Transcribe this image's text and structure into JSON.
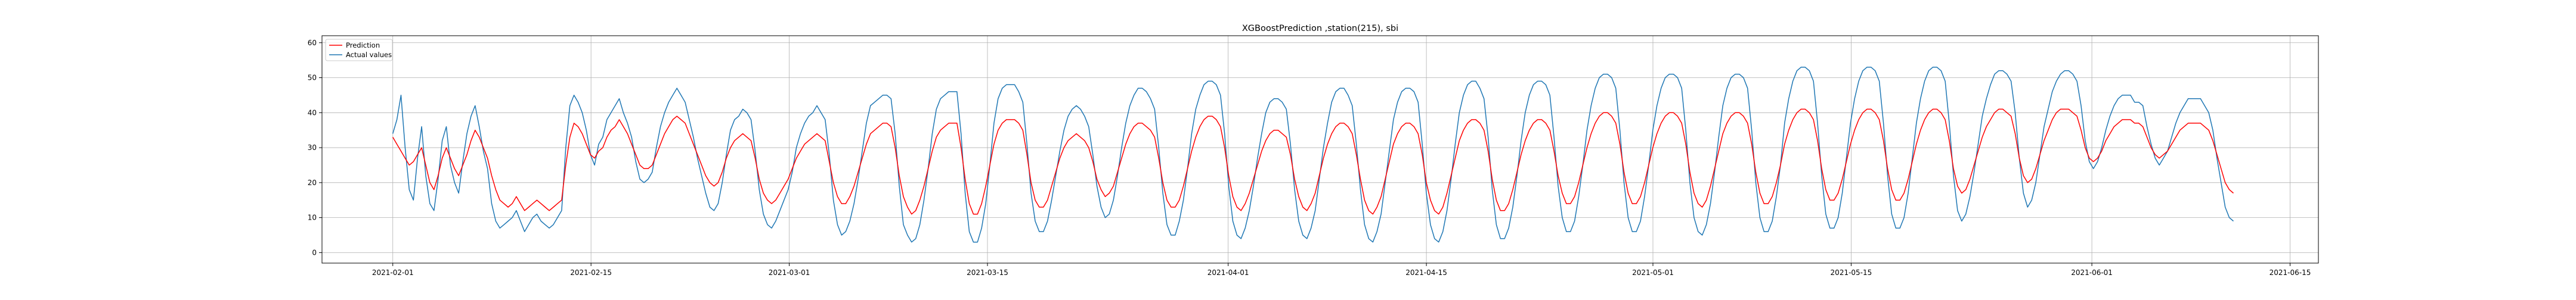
{
  "chart_data": {
    "type": "line",
    "title": "XGBoostPrediction ,station(215), sbi",
    "xlabel": "",
    "ylabel": "",
    "x_range": [
      "2021-01-27",
      "2021-06-17"
    ],
    "x_ticks": [
      "2021-02-01",
      "2021-02-15",
      "2021-03-01",
      "2021-03-15",
      "2021-04-01",
      "2021-04-15",
      "2021-05-01",
      "2021-05-15",
      "2021-06-01",
      "2021-06-15"
    ],
    "ylim": [
      -3,
      62
    ],
    "y_ticks": [
      0,
      10,
      20,
      30,
      40,
      50,
      60
    ],
    "grid": true,
    "legend_position": "top-left",
    "data_start": "2021-02-01",
    "data_end": "2021-06-11",
    "hourly_values": "sampled every 4 hours",
    "series": [
      {
        "name": "Prediction",
        "color": "#ff0000",
        "values": [
          33,
          31,
          29,
          27,
          25,
          26,
          28,
          30,
          25,
          20,
          18,
          22,
          27,
          30,
          27,
          24,
          22,
          25,
          28,
          32,
          35,
          33,
          30,
          27,
          22,
          18,
          15,
          14,
          13,
          14,
          16,
          14,
          12,
          13,
          14,
          15,
          14,
          13,
          12,
          13,
          14,
          15,
          25,
          33,
          37,
          36,
          34,
          31,
          28,
          27,
          29,
          30,
          33,
          35,
          36,
          38,
          36,
          34,
          31,
          28,
          25,
          24,
          24,
          25,
          28,
          31,
          34,
          36,
          38,
          39,
          38,
          37,
          34,
          31,
          28,
          25,
          22,
          20,
          19,
          20,
          23,
          27,
          30,
          32,
          33,
          34,
          33,
          32,
          27,
          21,
          17,
          15,
          14,
          15,
          17,
          19,
          21,
          24,
          27,
          29,
          31,
          32,
          33,
          34,
          33,
          32,
          26,
          20,
          16,
          14,
          14,
          16,
          19,
          23,
          27,
          31,
          34,
          35,
          36,
          37,
          37,
          36,
          30,
          22,
          16,
          13,
          11,
          12,
          15,
          19,
          24,
          29,
          33,
          35,
          36,
          37,
          37,
          37,
          30,
          21,
          14,
          11,
          11,
          14,
          19,
          25,
          31,
          35,
          37,
          38,
          38,
          38,
          37,
          35,
          28,
          20,
          15,
          13,
          13,
          15,
          19,
          23,
          27,
          30,
          32,
          33,
          34,
          33,
          32,
          30,
          26,
          21,
          18,
          16,
          17,
          19,
          23,
          27,
          31,
          34,
          36,
          37,
          37,
          36,
          35,
          33,
          27,
          20,
          15,
          13,
          13,
          15,
          19,
          24,
          29,
          33,
          36,
          38,
          39,
          39,
          38,
          36,
          30,
          22,
          16,
          13,
          12,
          14,
          17,
          21,
          25,
          29,
          32,
          34,
          35,
          35,
          34,
          33,
          28,
          21,
          16,
          13,
          12,
          14,
          17,
          22,
          27,
          31,
          34,
          36,
          37,
          37,
          36,
          34,
          28,
          21,
          15,
          12,
          11,
          13,
          16,
          21,
          26,
          31,
          34,
          36,
          37,
          37,
          36,
          34,
          28,
          20,
          15,
          12,
          11,
          13,
          17,
          22,
          27,
          32,
          35,
          37,
          38,
          38,
          37,
          35,
          29,
          21,
          15,
          12,
          12,
          14,
          18,
          23,
          28,
          32,
          35,
          37,
          38,
          38,
          37,
          35,
          29,
          22,
          17,
          14,
          14,
          16,
          20,
          25,
          30,
          34,
          37,
          39,
          40,
          40,
          39,
          37,
          31,
          23,
          17,
          14,
          14,
          16,
          20,
          25,
          30,
          34,
          37,
          39,
          40,
          40,
          39,
          37,
          31,
          23,
          17,
          14,
          13,
          15,
          19,
          24,
          29,
          34,
          37,
          39,
          40,
          40,
          39,
          37,
          31,
          23,
          17,
          14,
          14,
          16,
          20,
          25,
          31,
          35,
          38,
          40,
          41,
          41,
          40,
          38,
          32,
          24,
          18,
          15,
          15,
          17,
          21,
          26,
          31,
          35,
          38,
          40,
          41,
          41,
          40,
          38,
          32,
          24,
          18,
          15,
          15,
          17,
          21,
          26,
          31,
          35,
          38,
          40,
          41,
          41,
          40,
          38,
          32,
          24,
          19,
          17,
          18,
          21,
          25,
          29,
          33,
          36,
          38,
          40,
          41,
          41,
          40,
          39,
          34,
          27,
          22,
          20,
          21,
          24,
          28,
          32,
          35,
          38,
          40,
          41,
          41,
          41,
          40,
          39,
          35,
          30,
          27,
          26,
          27,
          29,
          32,
          34,
          36,
          37,
          38,
          38,
          38,
          37,
          37,
          36,
          33,
          30,
          28,
          27,
          28,
          29,
          31,
          33,
          35,
          36,
          37,
          37,
          37,
          37,
          36,
          35,
          32,
          28,
          24,
          20,
          18,
          17
        ]
      },
      {
        "name": "Actual values",
        "color": "#1f77b4",
        "values": [
          34,
          38,
          45,
          30,
          18,
          15,
          27,
          36,
          22,
          14,
          12,
          21,
          32,
          36,
          25,
          20,
          17,
          26,
          34,
          39,
          42,
          36,
          29,
          24,
          14,
          9,
          7,
          8,
          9,
          10,
          12,
          9,
          6,
          8,
          10,
          11,
          9,
          8,
          7,
          8,
          10,
          12,
          30,
          42,
          45,
          43,
          40,
          35,
          28,
          25,
          31,
          33,
          38,
          40,
          42,
          44,
          40,
          37,
          33,
          26,
          21,
          20,
          21,
          23,
          30,
          36,
          40,
          43,
          45,
          47,
          45,
          43,
          38,
          33,
          27,
          22,
          17,
          13,
          12,
          14,
          20,
          28,
          35,
          38,
          39,
          41,
          40,
          38,
          29,
          18,
          11,
          8,
          7,
          9,
          12,
          15,
          18,
          23,
          30,
          34,
          37,
          39,
          40,
          42,
          40,
          38,
          28,
          15,
          8,
          5,
          6,
          9,
          14,
          21,
          29,
          37,
          42,
          43,
          44,
          45,
          45,
          44,
          34,
          19,
          8,
          5,
          3,
          4,
          8,
          15,
          24,
          34,
          41,
          44,
          45,
          46,
          46,
          46,
          34,
          17,
          6,
          3,
          3,
          7,
          14,
          25,
          37,
          44,
          47,
          48,
          48,
          48,
          46,
          43,
          31,
          17,
          9,
          6,
          6,
          9,
          15,
          22,
          29,
          35,
          39,
          41,
          42,
          41,
          39,
          36,
          28,
          19,
          13,
          10,
          11,
          15,
          22,
          30,
          37,
          42,
          45,
          47,
          47,
          46,
          44,
          41,
          30,
          17,
          8,
          5,
          5,
          9,
          15,
          24,
          34,
          41,
          45,
          48,
          49,
          49,
          48,
          45,
          34,
          19,
          9,
          5,
          4,
          7,
          12,
          19,
          27,
          34,
          40,
          43,
          44,
          44,
          43,
          41,
          31,
          18,
          9,
          5,
          4,
          7,
          12,
          21,
          30,
          37,
          43,
          46,
          47,
          47,
          45,
          42,
          31,
          18,
          8,
          4,
          3,
          6,
          11,
          20,
          29,
          38,
          43,
          46,
          47,
          47,
          46,
          43,
          31,
          17,
          8,
          4,
          3,
          6,
          12,
          21,
          31,
          40,
          45,
          48,
          49,
          49,
          47,
          44,
          33,
          18,
          8,
          4,
          4,
          7,
          13,
          22,
          32,
          40,
          45,
          48,
          49,
          49,
          48,
          45,
          33,
          19,
          10,
          6,
          6,
          9,
          16,
          25,
          35,
          42,
          47,
          50,
          51,
          51,
          50,
          47,
          35,
          20,
          10,
          6,
          6,
          9,
          16,
          25,
          35,
          42,
          47,
          50,
          51,
          51,
          50,
          47,
          35,
          20,
          10,
          6,
          5,
          8,
          14,
          23,
          33,
          42,
          47,
          50,
          51,
          51,
          50,
          47,
          35,
          20,
          10,
          6,
          6,
          9,
          16,
          25,
          37,
          44,
          49,
          52,
          53,
          53,
          52,
          49,
          37,
          22,
          11,
          7,
          7,
          10,
          17,
          27,
          37,
          44,
          49,
          52,
          53,
          53,
          52,
          49,
          37,
          22,
          11,
          7,
          7,
          10,
          17,
          27,
          37,
          44,
          49,
          52,
          53,
          53,
          52,
          49,
          37,
          22,
          12,
          9,
          11,
          16,
          23,
          31,
          39,
          44,
          48,
          51,
          52,
          52,
          51,
          49,
          40,
          27,
          17,
          13,
          15,
          20,
          28,
          36,
          41,
          46,
          49,
          51,
          52,
          52,
          51,
          49,
          42,
          32,
          26,
          24,
          26,
          30,
          35,
          39,
          42,
          44,
          45,
          45,
          45,
          43,
          43,
          42,
          36,
          31,
          27,
          25,
          27,
          29,
          33,
          37,
          40,
          42,
          44,
          44,
          44,
          44,
          42,
          40,
          35,
          27,
          20,
          13,
          10,
          9
        ]
      }
    ]
  }
}
